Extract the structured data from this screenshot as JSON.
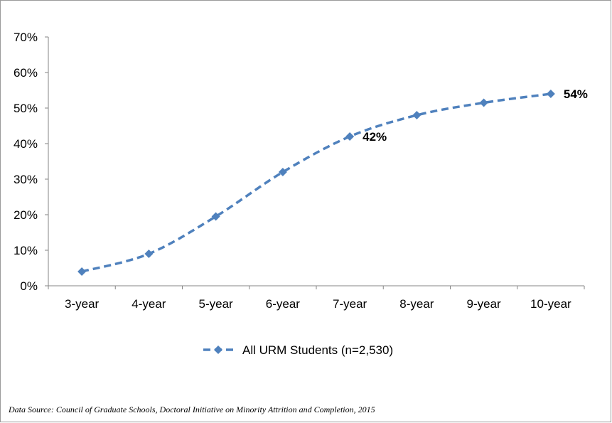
{
  "chart_data": {
    "type": "line",
    "categories": [
      "3-year",
      "4-year",
      "5-year",
      "6-year",
      "7-year",
      "8-year",
      "9-year",
      "10-year"
    ],
    "series": [
      {
        "name": "All URM Students (n=2,530)",
        "values": [
          4,
          9,
          19.5,
          32,
          42,
          48,
          51.5,
          54
        ],
        "color": "#4f81bd",
        "line_style": "dashed",
        "marker": "diamond"
      }
    ],
    "data_labels": [
      {
        "index": 4,
        "text": "42%"
      },
      {
        "index": 7,
        "text": "54%"
      }
    ],
    "y_tick_labels": [
      "0%",
      "10%",
      "20%",
      "30%",
      "40%",
      "50%",
      "60%",
      "70%"
    ],
    "ylim": [
      0,
      70
    ],
    "ytick_step": 10,
    "grid": false,
    "legend_position": "bottom",
    "title": "",
    "xlabel": "",
    "ylabel": ""
  },
  "source_note": "Data Source:  Council of Graduate Schools, Doctoral Initiative on Minority Attrition and Completion, 2015"
}
